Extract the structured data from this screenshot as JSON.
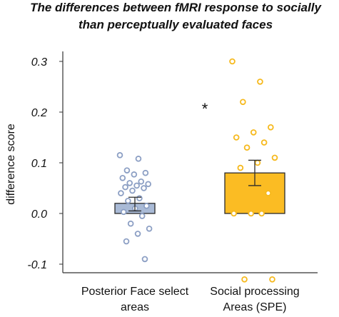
{
  "chart_data": {
    "type": "bar",
    "title_lines": [
      "The differences between fMRI response to socially",
      "than perceptually evaluated faces"
    ],
    "ylabel": "difference score",
    "ylim": [
      -0.12,
      0.32
    ],
    "yticks": [
      -0.1,
      0.0,
      0.1,
      0.2,
      0.3
    ],
    "ytick_labels": [
      "-0.1",
      "0.0",
      "0.1",
      "0.2",
      "0.3"
    ],
    "grid": false,
    "categories": [
      [
        "Posterior Face select",
        "areas"
      ],
      [
        "Social processing",
        "Areas (SPE)"
      ]
    ],
    "values": [
      0.02,
      0.08
    ],
    "error": [
      {
        "low": 0.005,
        "high": 0.032
      },
      {
        "low": 0.055,
        "high": 0.105
      }
    ],
    "bar_fill_colors": [
      "#a9bad6",
      "#fbbc23"
    ],
    "bar_edge_color": "#2b2b2b",
    "point_colors": [
      "#8c9fc4",
      "#f6b91d"
    ],
    "points": [
      [
        0.115,
        0.108,
        0.085,
        0.08,
        0.077,
        0.07,
        0.063,
        0.06,
        0.058,
        0.055,
        0.052,
        0.05,
        0.045,
        0.04,
        0.03,
        0.025,
        0.015,
        0.01,
        0.003,
        -0.005,
        -0.02,
        -0.03,
        -0.04,
        -0.055,
        -0.09
      ],
      [
        0.3,
        0.26,
        0.22,
        0.17,
        0.16,
        0.15,
        0.14,
        0.13,
        0.11,
        0.1,
        0.09,
        0.04,
        0.0,
        0.0,
        0.0,
        -0.13,
        -0.13
      ]
    ],
    "annotation": "*"
  }
}
